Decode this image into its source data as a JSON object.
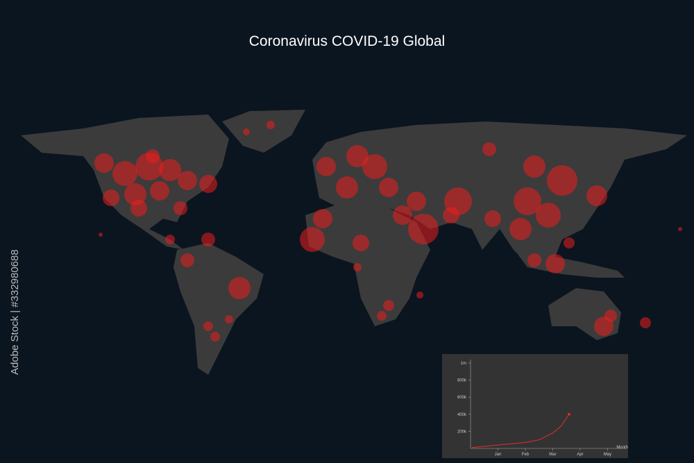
{
  "title": "Coronavirus COVID-19 Global",
  "stock_id": "Adobe Stock | #332980688",
  "chart_data": {
    "type": "line",
    "x_label": "Month",
    "x": [
      0.05,
      1,
      2,
      2.5,
      3,
      3.3,
      3.6
    ],
    "values": [
      10000,
      40000,
      70000,
      100000,
      180000,
      260000,
      400000
    ],
    "color": "#e0302e",
    "xlim": [
      0,
      5.7
    ],
    "xticks": [
      {
        "value": 1,
        "label": "Jan"
      },
      {
        "value": 2,
        "label": "Feb"
      },
      {
        "value": 3,
        "label": "Mar"
      },
      {
        "value": 4,
        "label": "Apr"
      },
      {
        "value": 5,
        "label": "May"
      }
    ],
    "ylim": [
      0,
      1000000
    ],
    "yticks": [
      {
        "value": 200000,
        "label": "200k"
      },
      {
        "value": 400000,
        "label": "400k"
      },
      {
        "value": 600000,
        "label": "600k"
      },
      {
        "value": 800000,
        "label": "800k"
      },
      {
        "value": 1000000,
        "label": "1m"
      }
    ]
  }
}
